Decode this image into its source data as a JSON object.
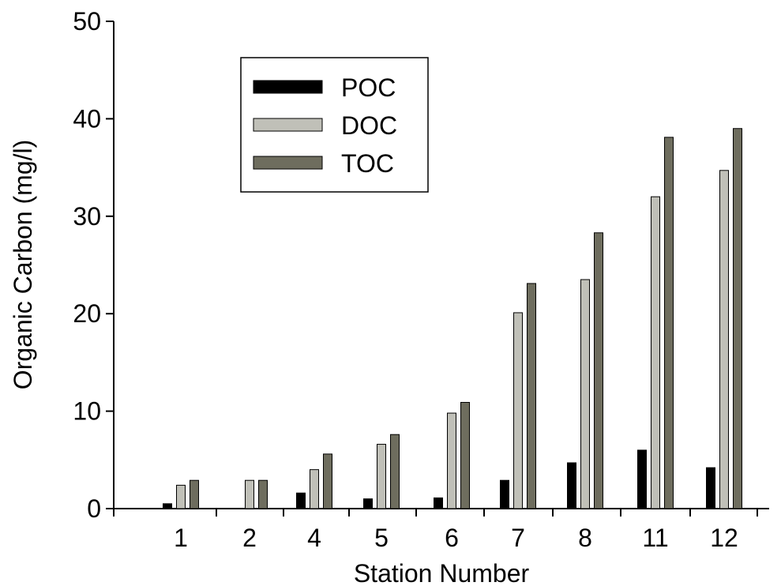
{
  "chart_data": {
    "type": "bar",
    "title": "",
    "xlabel": "Station Number",
    "ylabel": "Organic Carbon (mg/l)",
    "ylim": [
      0,
      50
    ],
    "yticks": [
      0,
      10,
      20,
      30,
      40,
      50
    ],
    "categories": [
      "1",
      "2",
      "4",
      "5",
      "6",
      "7",
      "8",
      "11",
      "12"
    ],
    "series": [
      {
        "name": "POC",
        "color": "#000000",
        "values": [
          0.5,
          0.0,
          1.6,
          1.0,
          1.1,
          2.9,
          4.7,
          6.0,
          4.2
        ]
      },
      {
        "name": "DOC",
        "color": "#c0c0b8",
        "values": [
          2.4,
          2.9,
          4.0,
          6.6,
          9.8,
          20.1,
          23.5,
          32.0,
          34.7
        ]
      },
      {
        "name": "TOC",
        "color": "#6e6d5e",
        "values": [
          2.9,
          2.9,
          5.6,
          7.6,
          10.9,
          23.1,
          28.3,
          38.1,
          39.0
        ]
      }
    ],
    "grid": false,
    "legend_position": "top-left"
  }
}
